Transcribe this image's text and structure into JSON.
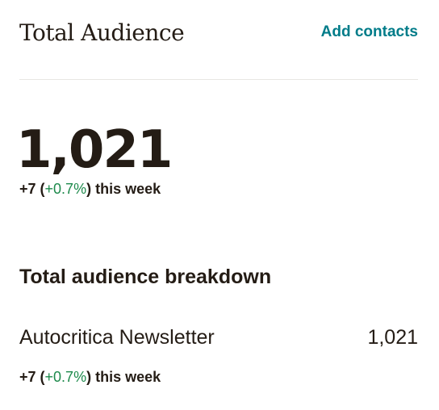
{
  "header": {
    "title": "Total Audience",
    "add_contacts_label": "Add contacts"
  },
  "summary": {
    "total": "1,021",
    "change_prefix": "+7 (",
    "change_pct": "+0.7%",
    "change_suffix": ") this week"
  },
  "breakdown": {
    "title": "Total audience breakdown",
    "items": [
      {
        "name": "Autocritica Newsletter",
        "count": "1,021",
        "change_prefix": "+7 (",
        "change_pct": "+0.7%",
        "change_suffix": ") this week"
      }
    ]
  },
  "colors": {
    "accent_link": "#007c89",
    "positive": "#1e8a4c",
    "text": "#241c15"
  }
}
